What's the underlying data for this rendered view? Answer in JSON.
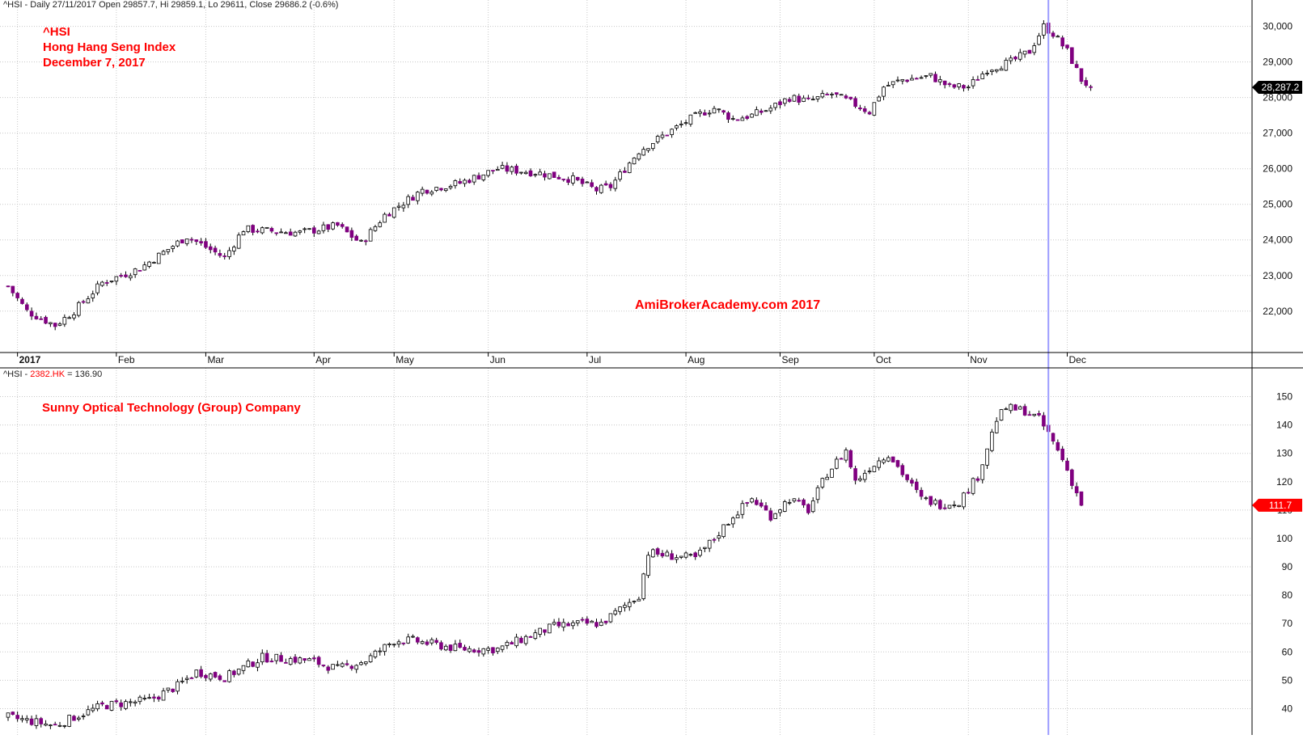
{
  "panel1": {
    "header": {
      "symbol": "^HSI",
      "text": " - Daily 27/11/2017 Open 29857.7, Hi 29859.1, Lo 29611, Close 29686.2 (-0.6%)"
    },
    "annotations": [
      "^HSI",
      "Hong Hang Seng Index",
      "December 7, 2017"
    ],
    "watermark": "AmiBrokerAcademy.com  2017",
    "last_price_label": "28,287.2"
  },
  "panel2": {
    "header": {
      "prefix": "^HSI - ",
      "ticker": "2382.HK",
      "suffix": " = 136.90"
    },
    "annotation": "Sunny Optical Technology (Group) Company",
    "last_price_label": "111.7"
  },
  "x_axis": {
    "labels": [
      {
        "label": "2017",
        "day": 2
      },
      {
        "label": "Feb",
        "day": 23
      },
      {
        "label": "Mar",
        "day": 42
      },
      {
        "label": "Apr",
        "day": 65
      },
      {
        "label": "May",
        "day": 82
      },
      {
        "label": "Jun",
        "day": 102
      },
      {
        "label": "Jul",
        "day": 123
      },
      {
        "label": "Aug",
        "day": 144
      },
      {
        "label": "Sep",
        "day": 164
      },
      {
        "label": "Oct",
        "day": 184
      },
      {
        "label": "Nov",
        "day": 204
      },
      {
        "label": "Dec",
        "day": 225
      }
    ]
  },
  "colors": {
    "up": "#ffffff",
    "down": "#800080",
    "wick": "#000000",
    "grid": "#c8c8c8",
    "cursor": "#9a9aff",
    "badge_black": "#000000",
    "badge_red": "#ff0000"
  },
  "cursor_day": 221,
  "chart_data": [
    {
      "type": "candlestick",
      "title": "^HSI",
      "y_ticks": [
        22000,
        23000,
        24000,
        25000,
        26000,
        27000,
        28000,
        29000,
        30000
      ],
      "ylim": [
        21200,
        30400
      ],
      "anchors": [
        [
          0,
          22700
        ],
        [
          4,
          22000
        ],
        [
          10,
          21600
        ],
        [
          14,
          22000
        ],
        [
          20,
          22800
        ],
        [
          28,
          23200
        ],
        [
          38,
          24100
        ],
        [
          46,
          23500
        ],
        [
          50,
          24300
        ],
        [
          62,
          24200
        ],
        [
          70,
          24400
        ],
        [
          75,
          23900
        ],
        [
          80,
          24700
        ],
        [
          88,
          25400
        ],
        [
          96,
          25600
        ],
        [
          104,
          26000
        ],
        [
          112,
          25900
        ],
        [
          120,
          25700
        ],
        [
          125,
          25400
        ],
        [
          128,
          25500
        ],
        [
          134,
          26500
        ],
        [
          140,
          27000
        ],
        [
          145,
          27400
        ],
        [
          148,
          27600
        ],
        [
          150,
          27700
        ],
        [
          154,
          27400
        ],
        [
          158,
          27500
        ],
        [
          162,
          27700
        ],
        [
          166,
          28000
        ],
        [
          170,
          27900
        ],
        [
          175,
          28100
        ],
        [
          180,
          27800
        ],
        [
          183,
          27600
        ],
        [
          186,
          28300
        ],
        [
          190,
          28500
        ],
        [
          196,
          28600
        ],
        [
          200,
          28300
        ],
        [
          204,
          28300
        ],
        [
          208,
          28800
        ],
        [
          213,
          29000
        ],
        [
          217,
          29300
        ],
        [
          220,
          30000
        ],
        [
          222,
          29800
        ],
        [
          225,
          29300
        ],
        [
          228,
          28500
        ],
        [
          230,
          28287
        ]
      ],
      "last": 28287.2
    },
    {
      "type": "candlestick",
      "title": "2382.HK",
      "y_ticks": [
        40,
        50,
        60,
        70,
        80,
        90,
        100,
        110,
        120,
        130,
        140,
        150
      ],
      "ylim": [
        33,
        157
      ],
      "anchors": [
        [
          0,
          37
        ],
        [
          10,
          34
        ],
        [
          14,
          37
        ],
        [
          20,
          41
        ],
        [
          30,
          43
        ],
        [
          36,
          48
        ],
        [
          40,
          53
        ],
        [
          46,
          51
        ],
        [
          54,
          58
        ],
        [
          64,
          57
        ],
        [
          70,
          54
        ],
        [
          76,
          57
        ],
        [
          82,
          64
        ],
        [
          86,
          64
        ],
        [
          96,
          61
        ],
        [
          104,
          61
        ],
        [
          110,
          65
        ],
        [
          116,
          69
        ],
        [
          122,
          70
        ],
        [
          126,
          70
        ],
        [
          130,
          75
        ],
        [
          134,
          80
        ],
        [
          136,
          95
        ],
        [
          140,
          94
        ],
        [
          146,
          93
        ],
        [
          150,
          100
        ],
        [
          154,
          108
        ],
        [
          158,
          114
        ],
        [
          162,
          108
        ],
        [
          166,
          114
        ],
        [
          170,
          110
        ],
        [
          174,
          123
        ],
        [
          178,
          131
        ],
        [
          180,
          120
        ],
        [
          183,
          125
        ],
        [
          187,
          130
        ],
        [
          190,
          123
        ],
        [
          194,
          114
        ],
        [
          198,
          112
        ],
        [
          202,
          113
        ],
        [
          206,
          122
        ],
        [
          210,
          142
        ],
        [
          212,
          146
        ],
        [
          216,
          145
        ],
        [
          219,
          142
        ],
        [
          221,
          137
        ],
        [
          224,
          128
        ],
        [
          226,
          120
        ],
        [
          228,
          112
        ]
      ],
      "last": 111.7
    }
  ]
}
